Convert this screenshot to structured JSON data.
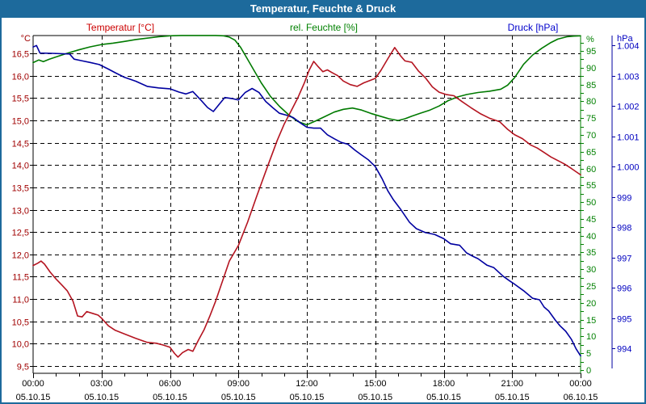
{
  "window": {
    "title": "Temperatur, Feuchte & Druck"
  },
  "frame": {
    "border_color": "#1d6a9c",
    "titlebar_bg": "#1d6a9c",
    "titlebar_text": "#ffffff"
  },
  "chart_data": {
    "type": "line",
    "title": "Temperatur, Feuchte & Druck",
    "grid": "dashed-black",
    "legend_position": "top-inline",
    "x_axis": {
      "minor_step_hours": 1,
      "major_step_hours": 3,
      "range_hours": [
        0,
        24
      ],
      "ticks": [
        {
          "hour": 0,
          "time": "00:00",
          "date": "05.10.15"
        },
        {
          "hour": 3,
          "time": "03:00",
          "date": "05.10.15"
        },
        {
          "hour": 6,
          "time": "06:00",
          "date": "05.10.15"
        },
        {
          "hour": 9,
          "time": "09:00",
          "date": "05.10.15"
        },
        {
          "hour": 12,
          "time": "12:00",
          "date": "05.10.15"
        },
        {
          "hour": 15,
          "time": "15:00",
          "date": "05.10.15"
        },
        {
          "hour": 18,
          "time": "18:00",
          "date": "05.10.15"
        },
        {
          "hour": 21,
          "time": "21:00",
          "date": "05.10.15"
        },
        {
          "hour": 24,
          "time": "00:00",
          "date": "06.10.15"
        }
      ]
    },
    "axes": {
      "temperature": {
        "header": "Temperatur [°C]",
        "unit": "°C",
        "side": "left",
        "color": "#a00000",
        "tick_values": [
          16.5,
          16,
          15.5,
          15,
          14.5,
          14,
          13.5,
          13,
          12.5,
          12,
          11.5,
          11,
          10.5,
          10,
          9.5
        ],
        "tick_labels": [
          "16,5",
          "16,0",
          "15,5",
          "15,0",
          "14,5",
          "14,0",
          "13,5",
          "13,0",
          "12,5",
          "12,0",
          "11,5",
          "11,0",
          "10,5",
          "10,0",
          "9,5"
        ],
        "range": [
          9.35,
          16.9
        ]
      },
      "humidity": {
        "header": "rel. Feuchte [%]",
        "unit": "%",
        "side": "right-inner",
        "color": "#008000",
        "tick_values": [
          95,
          90,
          85,
          80,
          75,
          70,
          65,
          60,
          55,
          50,
          45,
          40,
          35,
          30,
          25,
          20,
          15,
          10,
          5,
          0
        ],
        "tick_labels": [
          "95",
          "90",
          "85",
          "80",
          "75",
          "70",
          "65",
          "60",
          "55",
          "50",
          "45",
          "40",
          "35",
          "30",
          "25",
          "20",
          "15",
          "10",
          "5",
          "0"
        ],
        "minor_step": 2.5,
        "range": [
          0,
          99.6
        ]
      },
      "pressure": {
        "header": "Druck [hPa]",
        "unit": "hPa",
        "side": "right-outer",
        "color": "#0000c0",
        "tick_values": [
          1004,
          1003,
          1002,
          1001,
          1000,
          999,
          998,
          997,
          996,
          995,
          994
        ],
        "tick_labels": [
          "1.004",
          "1.003",
          "1.002",
          "1.001",
          "1.000",
          "999",
          "998",
          "997",
          "996",
          "995",
          "994"
        ],
        "range": [
          993.2,
          1004.3
        ]
      }
    },
    "series": [
      {
        "name": "rel. Feuchte",
        "unit": "%",
        "axis": "humidity",
        "color": "#007a00",
        "points": [
          [
            0,
            91.5
          ],
          [
            0.25,
            92.3
          ],
          [
            0.45,
            91.8
          ],
          [
            0.7,
            92.5
          ],
          [
            1,
            93.2
          ],
          [
            1.5,
            94.3
          ],
          [
            2,
            95.3
          ],
          [
            2.5,
            96.2
          ],
          [
            3,
            96.9
          ],
          [
            3.5,
            97.3
          ],
          [
            4,
            97.8
          ],
          [
            4.5,
            98.4
          ],
          [
            5,
            98.8
          ],
          [
            5.5,
            99.2
          ],
          [
            6,
            99.5
          ],
          [
            6.5,
            99.6
          ],
          [
            7,
            99.6
          ],
          [
            7.5,
            99.6
          ],
          [
            8,
            99.6
          ],
          [
            8.35,
            99.5
          ],
          [
            8.6,
            99.1
          ],
          [
            8.85,
            98.2
          ],
          [
            9.1,
            96
          ],
          [
            9.4,
            92.5
          ],
          [
            9.7,
            89
          ],
          [
            10,
            85.5
          ],
          [
            10.4,
            81.5
          ],
          [
            10.8,
            78.5
          ],
          [
            11.2,
            76
          ],
          [
            11.6,
            74
          ],
          [
            12,
            73
          ],
          [
            12.4,
            74.2
          ],
          [
            12.8,
            75.5
          ],
          [
            13.2,
            76.8
          ],
          [
            13.6,
            77.6
          ],
          [
            14,
            78
          ],
          [
            14.4,
            77.4
          ],
          [
            14.8,
            76.4
          ],
          [
            15.2,
            75.6
          ],
          [
            15.6,
            74.8
          ],
          [
            16,
            74.3
          ],
          [
            16.3,
            74.8
          ],
          [
            16.6,
            75.6
          ],
          [
            17,
            76.5
          ],
          [
            17.4,
            77.4
          ],
          [
            17.8,
            78.6
          ],
          [
            18.2,
            80.2
          ],
          [
            18.6,
            81.3
          ],
          [
            19,
            82
          ],
          [
            19.5,
            82.6
          ],
          [
            20,
            83
          ],
          [
            20.5,
            83.6
          ],
          [
            20.8,
            84.8
          ],
          [
            21.1,
            87
          ],
          [
            21.5,
            91
          ],
          [
            21.9,
            93.8
          ],
          [
            22.3,
            95.8
          ],
          [
            22.7,
            97.5
          ],
          [
            23,
            98.5
          ],
          [
            23.4,
            99.2
          ],
          [
            23.7,
            99.4
          ],
          [
            24,
            99.5
          ]
        ]
      },
      {
        "name": "Druck",
        "unit": "hPa",
        "axis": "pressure",
        "color": "#0000a0",
        "points": [
          [
            0,
            1003.95
          ],
          [
            0.15,
            1004.0
          ],
          [
            0.3,
            1003.75
          ],
          [
            0.8,
            1003.74
          ],
          [
            1.6,
            1003.72
          ],
          [
            1.8,
            1003.55
          ],
          [
            2.1,
            1003.5
          ],
          [
            2.5,
            1003.44
          ],
          [
            2.9,
            1003.37
          ],
          [
            3.3,
            1003.22
          ],
          [
            3.6,
            1003.1
          ],
          [
            4,
            1002.95
          ],
          [
            4.5,
            1002.82
          ],
          [
            5,
            1002.65
          ],
          [
            5.5,
            1002.6
          ],
          [
            6,
            1002.57
          ],
          [
            6.4,
            1002.46
          ],
          [
            6.7,
            1002.4
          ],
          [
            7,
            1002.48
          ],
          [
            7.35,
            1002.2
          ],
          [
            7.65,
            1001.95
          ],
          [
            7.9,
            1001.82
          ],
          [
            8.15,
            1002.05
          ],
          [
            8.4,
            1002.28
          ],
          [
            8.7,
            1002.25
          ],
          [
            9,
            1002.2
          ],
          [
            9.3,
            1002.45
          ],
          [
            9.6,
            1002.58
          ],
          [
            9.9,
            1002.45
          ],
          [
            10.2,
            1002.15
          ],
          [
            10.5,
            1001.95
          ],
          [
            10.8,
            1001.76
          ],
          [
            11.1,
            1001.7
          ],
          [
            11.4,
            1001.62
          ],
          [
            11.7,
            1001.45
          ],
          [
            12,
            1001.3
          ],
          [
            12.3,
            1001.27
          ],
          [
            12.6,
            1001.27
          ],
          [
            12.9,
            1001.05
          ],
          [
            13.2,
            1000.92
          ],
          [
            13.5,
            1000.8
          ],
          [
            13.8,
            1000.74
          ],
          [
            14.1,
            1000.55
          ],
          [
            14.4,
            1000.38
          ],
          [
            14.7,
            1000.22
          ],
          [
            15,
            1000.0
          ],
          [
            15.3,
            999.6
          ],
          [
            15.55,
            999.2
          ],
          [
            15.8,
            998.9
          ],
          [
            16.1,
            998.6
          ],
          [
            16.5,
            998.16
          ],
          [
            16.8,
            997.95
          ],
          [
            17.2,
            997.82
          ],
          [
            17.6,
            997.76
          ],
          [
            18,
            997.62
          ],
          [
            18.3,
            997.45
          ],
          [
            18.7,
            997.4
          ],
          [
            19,
            997.15
          ],
          [
            19.3,
            997.03
          ],
          [
            19.5,
            996.96
          ],
          [
            19.9,
            996.74
          ],
          [
            20.2,
            996.66
          ],
          [
            20.6,
            996.38
          ],
          [
            20.9,
            996.22
          ],
          [
            21.1,
            996.12
          ],
          [
            21.5,
            995.9
          ],
          [
            21.9,
            995.65
          ],
          [
            22.2,
            995.6
          ],
          [
            22.4,
            995.36
          ],
          [
            22.6,
            995.23
          ],
          [
            22.9,
            994.92
          ],
          [
            23.1,
            994.74
          ],
          [
            23.35,
            994.56
          ],
          [
            23.6,
            994.29
          ],
          [
            23.8,
            993.98
          ],
          [
            24,
            993.75
          ]
        ]
      },
      {
        "name": "Temperatur",
        "unit": "°C",
        "axis": "temperature",
        "color": "#b41420",
        "points": [
          [
            0,
            11.75
          ],
          [
            0.2,
            11.8
          ],
          [
            0.35,
            11.85
          ],
          [
            0.5,
            11.78
          ],
          [
            0.75,
            11.6
          ],
          [
            1,
            11.45
          ],
          [
            1.25,
            11.32
          ],
          [
            1.5,
            11.18
          ],
          [
            1.75,
            10.95
          ],
          [
            1.95,
            10.62
          ],
          [
            2.15,
            10.6
          ],
          [
            2.35,
            10.72
          ],
          [
            2.6,
            10.68
          ],
          [
            2.85,
            10.64
          ],
          [
            3,
            10.57
          ],
          [
            3.3,
            10.4
          ],
          [
            3.6,
            10.3
          ],
          [
            4,
            10.22
          ],
          [
            4.5,
            10.12
          ],
          [
            5,
            10.03
          ],
          [
            5.4,
            10.01
          ],
          [
            5.7,
            9.97
          ],
          [
            6,
            9.92
          ],
          [
            6.2,
            9.78
          ],
          [
            6.35,
            9.7
          ],
          [
            6.55,
            9.8
          ],
          [
            6.8,
            9.87
          ],
          [
            7,
            9.83
          ],
          [
            7.25,
            10.08
          ],
          [
            7.5,
            10.32
          ],
          [
            7.75,
            10.62
          ],
          [
            8,
            10.95
          ],
          [
            8.3,
            11.4
          ],
          [
            8.6,
            11.85
          ],
          [
            9,
            12.2
          ],
          [
            9.4,
            12.72
          ],
          [
            9.8,
            13.3
          ],
          [
            10.3,
            14.0
          ],
          [
            10.7,
            14.55
          ],
          [
            11,
            14.91
          ],
          [
            11.3,
            15.2
          ],
          [
            11.6,
            15.5
          ],
          [
            11.9,
            15.85
          ],
          [
            12.1,
            16.12
          ],
          [
            12.3,
            16.32
          ],
          [
            12.5,
            16.2
          ],
          [
            12.7,
            16.09
          ],
          [
            12.9,
            16.13
          ],
          [
            13.1,
            16.07
          ],
          [
            13.35,
            16.0
          ],
          [
            13.6,
            15.88
          ],
          [
            13.9,
            15.8
          ],
          [
            14.2,
            15.76
          ],
          [
            14.5,
            15.84
          ],
          [
            14.8,
            15.9
          ],
          [
            15,
            15.94
          ],
          [
            15.25,
            16.12
          ],
          [
            15.55,
            16.38
          ],
          [
            15.85,
            16.63
          ],
          [
            16.1,
            16.45
          ],
          [
            16.3,
            16.33
          ],
          [
            16.6,
            16.3
          ],
          [
            16.9,
            16.1
          ],
          [
            17.2,
            15.95
          ],
          [
            17.5,
            15.75
          ],
          [
            17.8,
            15.63
          ],
          [
            18.1,
            15.58
          ],
          [
            18.45,
            15.55
          ],
          [
            18.8,
            15.42
          ],
          [
            19.2,
            15.28
          ],
          [
            19.6,
            15.15
          ],
          [
            20,
            15.05
          ],
          [
            20.45,
            14.97
          ],
          [
            20.8,
            14.8
          ],
          [
            21.1,
            14.68
          ],
          [
            21.45,
            14.59
          ],
          [
            21.8,
            14.45
          ],
          [
            22.1,
            14.38
          ],
          [
            22.4,
            14.28
          ],
          [
            22.7,
            14.18
          ],
          [
            23,
            14.1
          ],
          [
            23.3,
            14.02
          ],
          [
            23.6,
            13.92
          ],
          [
            24,
            13.78
          ]
        ]
      }
    ]
  }
}
